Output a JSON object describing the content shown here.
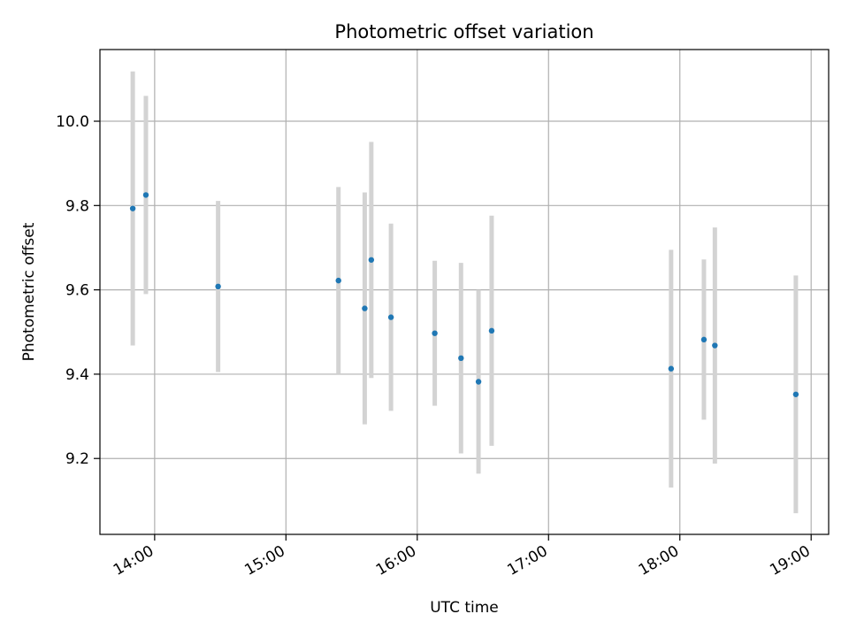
{
  "chart_data": {
    "type": "scatter",
    "title": "Photometric offset variation",
    "xlabel": "UTC time",
    "ylabel": "Photometric offset",
    "x_ticks": [
      "14:00",
      "15:00",
      "16:00",
      "17:00",
      "18:00",
      "19:00"
    ],
    "y_ticks": [
      "9.2",
      "9.4",
      "9.6",
      "9.8",
      "10.0"
    ],
    "ylim": [
      9.02,
      10.17
    ],
    "xlim": [
      "13:35",
      "19:08"
    ],
    "grid": true,
    "point_color": "#1f77b4",
    "errorbar_color": "#d3d3d3",
    "series": [
      {
        "points": [
          {
            "x": "13:50",
            "y": 9.793,
            "err": 0.325
          },
          {
            "x": "13:56",
            "y": 9.825,
            "err": 0.235
          },
          {
            "x": "14:29",
            "y": 9.608,
            "err": 0.203
          },
          {
            "x": "15:24",
            "y": 9.622,
            "err": 0.222
          },
          {
            "x": "15:36",
            "y": 9.556,
            "err": 0.275
          },
          {
            "x": "15:39",
            "y": 9.671,
            "err": 0.28
          },
          {
            "x": "15:48",
            "y": 9.535,
            "err": 0.222
          },
          {
            "x": "16:08",
            "y": 9.497,
            "err": 0.172
          },
          {
            "x": "16:20",
            "y": 9.438,
            "err": 0.226
          },
          {
            "x": "16:28",
            "y": 9.382,
            "err": 0.218
          },
          {
            "x": "16:34",
            "y": 9.503,
            "err": 0.273
          },
          {
            "x": "17:56",
            "y": 9.413,
            "err": 0.282
          },
          {
            "x": "18:11",
            "y": 9.482,
            "err": 0.19
          },
          {
            "x": "18:16",
            "y": 9.468,
            "err": 0.28
          },
          {
            "x": "18:53",
            "y": 9.352,
            "err": 0.282
          }
        ]
      }
    ]
  }
}
